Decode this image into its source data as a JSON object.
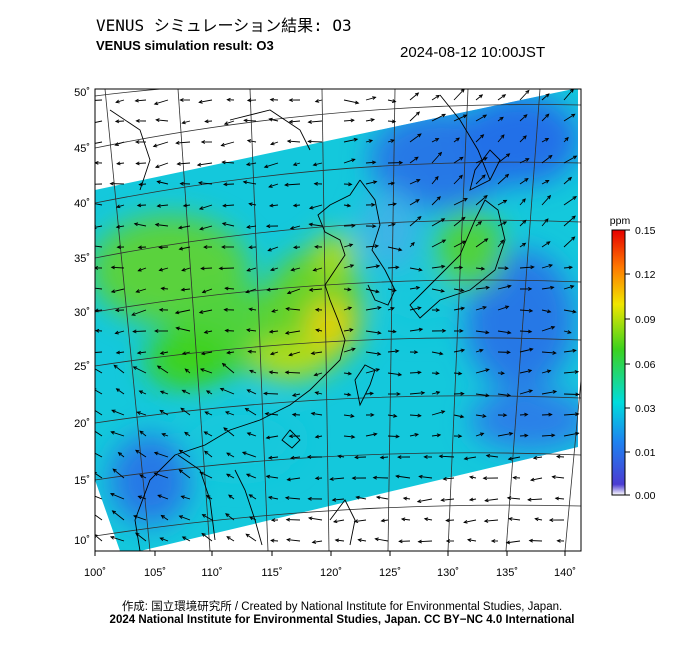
{
  "header": {
    "title_jp": "VENUS シミュレーション結果: O3",
    "title_en": "VENUS simulation result: O3",
    "timestamp": "2024-08-12 10:00JST"
  },
  "map": {
    "lat_ticks": [
      "10˚",
      "15˚",
      "20˚",
      "25˚",
      "30˚",
      "35˚",
      "40˚",
      "45˚",
      "50˚"
    ],
    "lon_ticks": [
      "100˚",
      "105˚",
      "110˚",
      "115˚",
      "120˚",
      "125˚",
      "130˚",
      "135˚",
      "140˚"
    ],
    "extent": {
      "lon": [
        100,
        141
      ],
      "lat": [
        9,
        51
      ]
    },
    "variable": "O3",
    "field_colors": {
      "low": "#1e64e6",
      "mid": "#00dcdc",
      "high": "#3cd21e",
      "peak": "#f0c800"
    }
  },
  "colorbar": {
    "unit": "ppm",
    "labels": [
      "0.15",
      "0.12",
      "0.09",
      "0.06",
      "0.03",
      "0.01",
      "0.00"
    ],
    "stops": [
      "#ffffff",
      "#4b3cd2",
      "#1e82f0",
      "#00dcdc",
      "#3cd21e",
      "#f0e600",
      "#ff7800",
      "#e60000"
    ]
  },
  "footer": {
    "credit_jp": "作成: 国立環境研究所 / Created by National Institute for Environmental Studies, Japan.",
    "copyright": "2024 National Institute for Environmental Studies, Japan. CC BY−NC 4.0 International"
  }
}
